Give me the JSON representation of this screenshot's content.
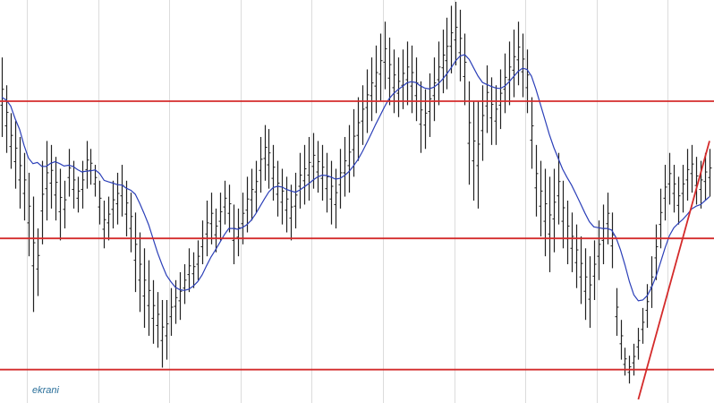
{
  "chart_data": {
    "type": "ohlc",
    "title": "",
    "xlabel": "",
    "ylabel": "",
    "ylim": [
      0,
      100
    ],
    "grid": {
      "vertical": true,
      "horizontal": false,
      "color": "#dcdcdc"
    },
    "colors": {
      "bars": "#222222",
      "moving_average": "#2b3fb8",
      "support_resistance": "#d42b2b",
      "trendline": "#d42b2b"
    },
    "horizontal_levels": [
      75.0,
      40.5,
      7.5
    ],
    "trendline": {
      "from": {
        "bar": 143,
        "value": 0
      },
      "to": {
        "bar": 159,
        "value": 65
      }
    },
    "bars": [
      [
        86,
        66
      ],
      [
        79,
        62
      ],
      [
        72,
        58
      ],
      [
        70,
        53
      ],
      [
        66,
        48
      ],
      [
        62,
        45
      ],
      [
        57,
        36
      ],
      [
        51,
        22
      ],
      [
        43,
        26
      ],
      [
        60,
        39
      ],
      [
        65,
        45
      ],
      [
        64,
        48
      ],
      [
        61,
        45
      ],
      [
        58,
        40
      ],
      [
        55,
        43
      ],
      [
        63,
        51
      ],
      [
        60,
        48
      ],
      [
        56,
        47
      ],
      [
        60,
        48
      ],
      [
        65,
        53
      ],
      [
        63,
        54
      ],
      [
        59,
        51
      ],
      [
        55,
        44
      ],
      [
        50,
        38
      ],
      [
        51,
        40
      ],
      [
        55,
        43
      ],
      [
        57,
        44
      ],
      [
        59,
        46
      ],
      [
        55,
        41
      ],
      [
        52,
        37
      ],
      [
        47,
        27
      ],
      [
        42,
        22
      ],
      [
        38,
        18
      ],
      [
        35,
        16
      ],
      [
        30,
        14
      ],
      [
        27,
        13
      ],
      [
        25,
        8
      ],
      [
        25,
        10
      ],
      [
        28,
        16
      ],
      [
        30,
        19
      ],
      [
        32,
        20
      ],
      [
        34,
        24
      ],
      [
        38,
        27
      ],
      [
        37,
        28
      ],
      [
        40,
        30
      ],
      [
        45,
        34
      ],
      [
        50,
        36
      ],
      [
        52,
        39
      ],
      [
        48,
        37
      ],
      [
        52,
        40
      ],
      [
        55,
        44
      ],
      [
        54,
        42
      ],
      [
        49,
        34
      ],
      [
        48,
        36
      ],
      [
        52,
        39
      ],
      [
        56,
        42
      ],
      [
        58,
        45
      ],
      [
        60,
        47
      ],
      [
        66,
        52
      ],
      [
        69,
        55
      ],
      [
        68,
        53
      ],
      [
        64,
        50
      ],
      [
        60,
        46
      ],
      [
        58,
        44
      ],
      [
        56,
        42
      ],
      [
        54,
        40
      ],
      [
        57,
        43
      ],
      [
        62,
        48
      ],
      [
        64,
        49
      ],
      [
        66,
        50
      ],
      [
        67,
        53
      ],
      [
        65,
        52
      ],
      [
        64,
        50
      ],
      [
        62,
        47
      ],
      [
        60,
        44
      ],
      [
        58,
        43
      ],
      [
        63,
        48
      ],
      [
        66,
        51
      ],
      [
        69,
        52
      ],
      [
        73,
        56
      ],
      [
        76,
        60
      ],
      [
        79,
        64
      ],
      [
        83,
        67
      ],
      [
        86,
        70
      ],
      [
        89,
        72
      ],
      [
        92,
        75
      ],
      [
        95,
        78
      ],
      [
        91,
        74
      ],
      [
        88,
        72
      ],
      [
        86,
        71
      ],
      [
        88,
        73
      ],
      [
        90,
        74
      ],
      [
        89,
        72
      ],
      [
        86,
        70
      ],
      [
        80,
        62
      ],
      [
        78,
        63
      ],
      [
        82,
        66
      ],
      [
        86,
        70
      ],
      [
        90,
        74
      ],
      [
        93,
        77
      ],
      [
        96,
        78
      ],
      [
        99,
        82
      ],
      [
        100,
        84
      ],
      [
        98,
        80
      ],
      [
        92,
        74
      ],
      [
        80,
        54
      ],
      [
        75,
        50
      ],
      [
        75,
        48
      ],
      [
        79,
        60
      ],
      [
        84,
        67
      ],
      [
        81,
        64
      ],
      [
        79,
        64
      ],
      [
        83,
        68
      ],
      [
        87,
        72
      ],
      [
        90,
        74
      ],
      [
        93,
        76
      ],
      [
        95,
        79
      ],
      [
        92,
        76
      ],
      [
        88,
        72
      ],
      [
        76,
        58
      ],
      [
        64,
        46
      ],
      [
        60,
        41
      ],
      [
        58,
        36
      ],
      [
        56,
        32
      ],
      [
        58,
        37
      ],
      [
        62,
        44
      ],
      [
        55,
        38
      ],
      [
        50,
        34
      ],
      [
        47,
        32
      ],
      [
        44,
        28
      ],
      [
        41,
        24
      ],
      [
        38,
        20
      ],
      [
        36,
        18
      ],
      [
        40,
        25
      ],
      [
        45,
        30
      ],
      [
        49,
        34
      ],
      [
        52,
        39
      ],
      [
        47,
        33
      ],
      [
        28,
        16
      ],
      [
        20,
        10
      ],
      [
        13,
        6
      ],
      [
        11,
        4
      ],
      [
        14,
        6
      ],
      [
        18,
        10
      ],
      [
        23,
        14
      ],
      [
        29,
        18
      ],
      [
        36,
        23
      ],
      [
        44,
        30
      ],
      [
        53,
        38
      ],
      [
        59,
        45
      ],
      [
        62,
        49
      ],
      [
        59,
        47
      ],
      [
        56,
        44
      ],
      [
        59,
        47
      ],
      [
        63,
        50
      ],
      [
        64,
        52
      ],
      [
        61,
        49
      ],
      [
        60,
        48
      ],
      [
        62,
        50
      ],
      [
        63,
        51
      ]
    ],
    "moving_average": [
      76.0,
      75.3,
      73.8,
      70.6,
      67.9,
      63.9,
      60.7,
      59.3,
      59.6,
      58.6,
      58.6,
      59.4,
      59.8,
      59.3,
      58.7,
      58.9,
      58.6,
      57.8,
      57.2,
      57.4,
      57.5,
      57.7,
      56.8,
      55.1,
      54.7,
      54.4,
      54.0,
      53.9,
      53.1,
      52.6,
      51.6,
      49.3,
      46.7,
      43.9,
      40.4,
      36.9,
      33.9,
      31.2,
      29.6,
      28.2,
      27.6,
      27.4,
      27.7,
      28.5,
      29.6,
      31.3,
      33.6,
      35.8,
      37.6,
      39.5,
      41.4,
      43.0,
      43.0,
      42.8,
      43.2,
      43.9,
      45.0,
      46.6,
      48.5,
      50.4,
      52.2,
      53.3,
      53.6,
      53.4,
      52.8,
      52.4,
      52.1,
      52.7,
      53.5,
      54.3,
      55.2,
      56.0,
      56.4,
      56.3,
      55.9,
      55.4,
      55.6,
      56.3,
      57.3,
      58.7,
      60.3,
      62.3,
      64.5,
      66.8,
      69.2,
      71.4,
      73.6,
      75.6,
      76.9,
      77.9,
      78.7,
      79.6,
      79.9,
      79.7,
      78.9,
      78.3,
      78.1,
      78.5,
      79.3,
      80.5,
      81.9,
      83.5,
      85.2,
      86.4,
      86.7,
      85.5,
      83.4,
      81.3,
      79.7,
      79.2,
      78.7,
      78.3,
      78.2,
      78.8,
      79.9,
      81.2,
      82.5,
      83.3,
      83.0,
      81.3,
      78.0,
      74.2,
      70.5,
      66.7,
      63.4,
      60.6,
      57.9,
      55.8,
      53.9,
      51.6,
      49.3,
      46.9,
      44.7,
      43.4,
      43.2,
      43.0,
      43.0,
      42.6,
      40.7,
      37.6,
      33.8,
      29.6,
      26.3,
      24.8,
      25.0,
      26.1,
      28.2,
      31.0,
      34.5,
      38.1,
      41.2,
      43.2,
      44.3,
      45.3,
      46.5,
      47.9,
      48.6,
      49.0,
      50.0,
      51.0
    ]
  },
  "watermark": {
    "text": "ekrani"
  }
}
